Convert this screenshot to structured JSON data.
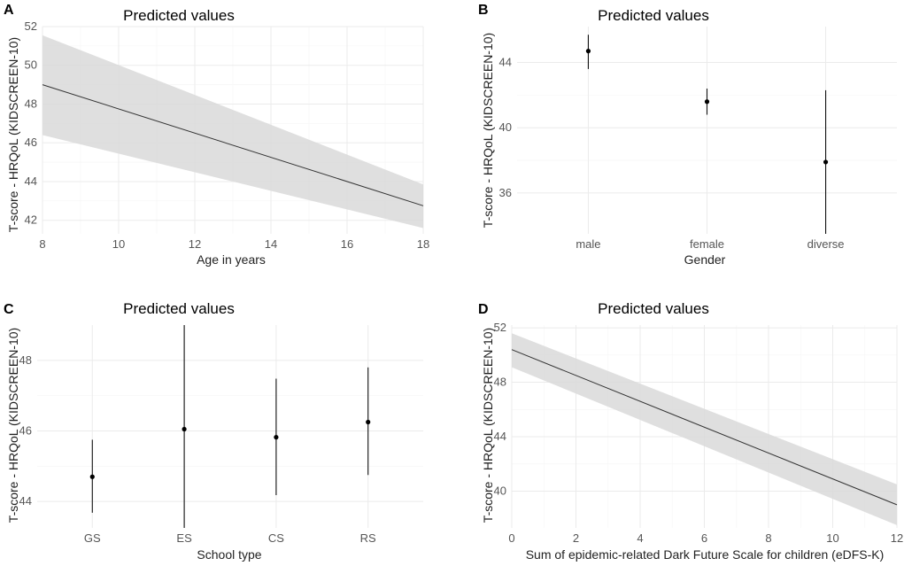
{
  "chart_data": [
    {
      "panel": "A",
      "type": "line",
      "title": "Predicted values",
      "xlabel": "Age in years",
      "ylabel": "T-score - HRQoL (KIDSCREEN-10)",
      "xlim": [
        8,
        18
      ],
      "ylim": [
        41.3,
        52
      ],
      "xticks": [
        8,
        10,
        12,
        14,
        16,
        18
      ],
      "yticks": [
        42,
        44,
        46,
        48,
        50,
        52
      ],
      "x": [
        8,
        18
      ],
      "y": [
        49.0,
        42.75
      ],
      "ci_lower": [
        46.4,
        41.6
      ],
      "ci_upper": [
        51.55,
        43.85
      ]
    },
    {
      "panel": "B",
      "type": "scatter",
      "title": "Predicted values",
      "xlabel": "Gender",
      "ylabel": "T-score - HRQoL (KIDSCREEN-10)",
      "categories": [
        "male",
        "female",
        "diverse"
      ],
      "values": [
        44.7,
        41.6,
        37.9
      ],
      "ci_lower": [
        43.6,
        40.8,
        33.5
      ],
      "ci_upper": [
        45.7,
        42.4,
        42.3
      ],
      "ylim": [
        33.5,
        46.2
      ],
      "yticks": [
        36,
        40,
        44
      ]
    },
    {
      "panel": "C",
      "type": "scatter",
      "title": "Predicted values",
      "xlabel": "School type",
      "ylabel": "T-score - HRQoL (KIDSCREEN-10)",
      "categories": [
        "GS",
        "ES",
        "CS",
        "RS"
      ],
      "values": [
        44.7,
        46.05,
        45.82,
        46.25
      ],
      "ci_lower": [
        43.68,
        43.25,
        44.18,
        44.75
      ],
      "ci_upper": [
        45.75,
        49.0,
        47.48,
        47.8
      ],
      "ylim": [
        43.25,
        49.0
      ],
      "yticks": [
        44,
        46,
        48
      ]
    },
    {
      "panel": "D",
      "type": "line",
      "title": "Predicted values",
      "xlabel": "Sum of epidemic-related Dark Future Scale for children (eDFS-K)",
      "ylabel": "T-score - HRQoL (KIDSCREEN-10)",
      "xlim": [
        0,
        12
      ],
      "ylim": [
        37.3,
        52.2
      ],
      "xticks": [
        0,
        2,
        4,
        6,
        8,
        10,
        12
      ],
      "yticks": [
        40,
        44,
        48,
        52
      ],
      "x": [
        0,
        12
      ],
      "y": [
        50.4,
        39.0
      ],
      "ci_lower": [
        49.1,
        37.5
      ],
      "ci_upper": [
        51.6,
        40.5
      ]
    }
  ]
}
